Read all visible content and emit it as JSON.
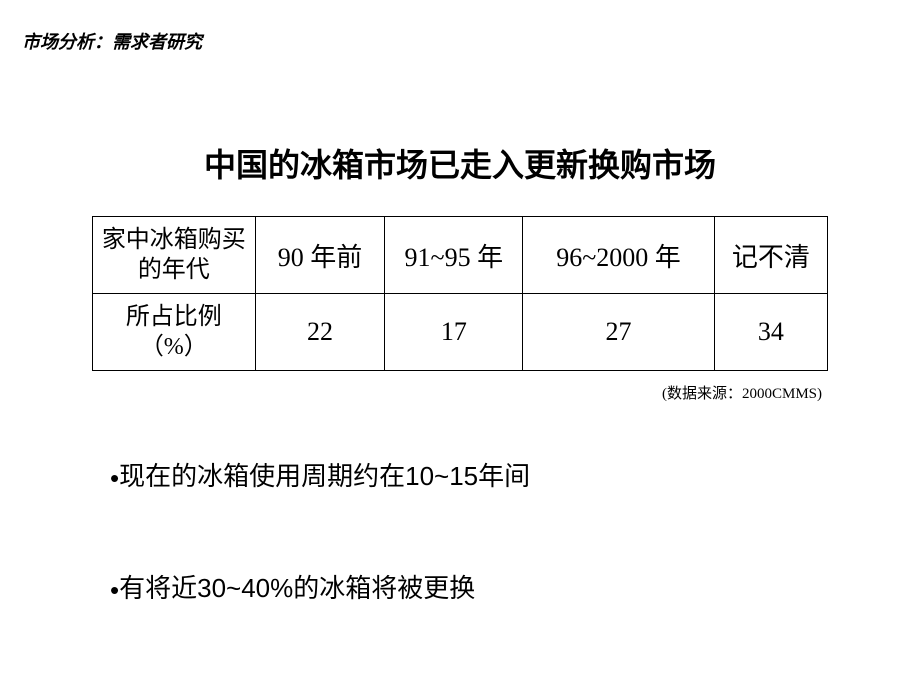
{
  "header": "市场分析：需求者研究",
  "title": "中国的冰箱市场已走入更新换购市场",
  "table": {
    "row1_header": "家中冰箱购买的年代",
    "row2_header": "所占比例（%）",
    "columns": {
      "c1": "90 年前",
      "c2": "91~95 年",
      "c3": "96~2000 年",
      "c4": "记不清"
    },
    "values": {
      "v1": "22",
      "v2": "17",
      "v3": "27",
      "v4": "34"
    }
  },
  "source": "(数据来源：2000CMMS)",
  "bullets": {
    "b1_dot": "•",
    "b1": "现在的冰箱使用周期约在10~15年间",
    "b2_dot": "•",
    "b2": "有将近30~40%的冰箱将被更换"
  },
  "styling": {
    "background_color": "#ffffff",
    "text_color": "#000000",
    "border_color": "#000000",
    "header_fontsize": 18,
    "title_fontsize": 32,
    "table_fontsize": 26,
    "rowheader_fontsize": 24,
    "source_fontsize": 15,
    "bullet_fontsize": 26
  }
}
